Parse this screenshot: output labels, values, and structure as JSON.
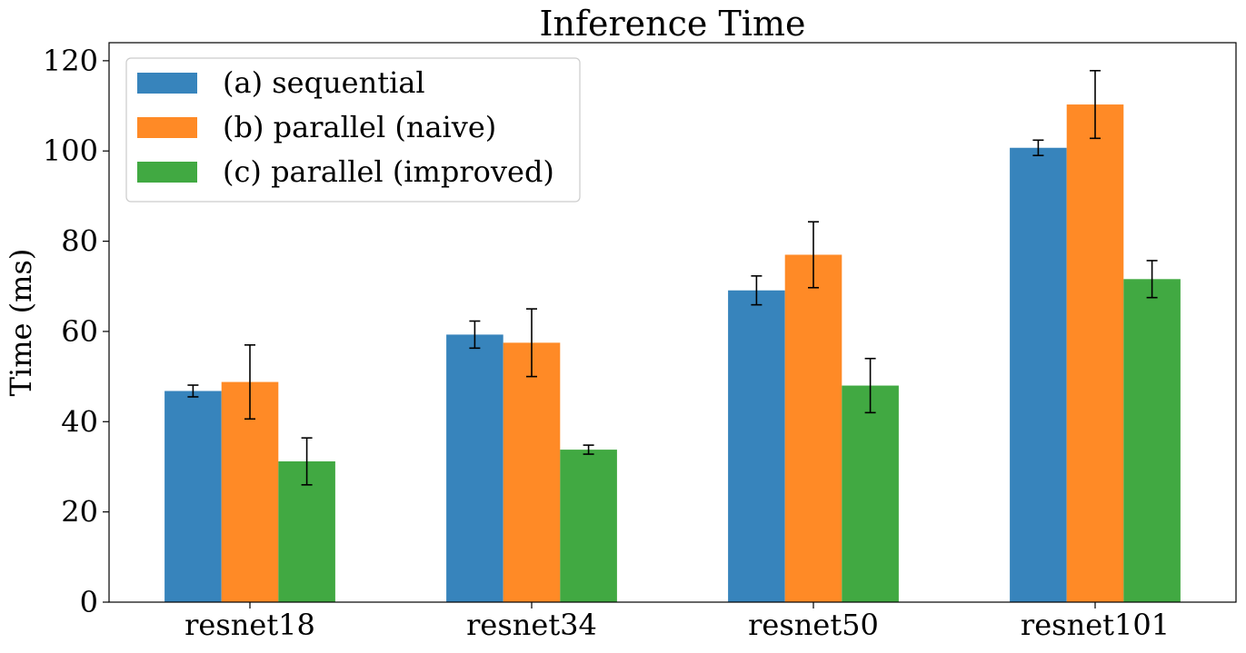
{
  "chart_data": {
    "type": "bar",
    "title": "Inference Time",
    "xlabel": "",
    "ylabel": "Time (ms)",
    "categories": [
      "resnet18",
      "resnet34",
      "resnet50",
      "resnet101"
    ],
    "ylim": [
      0,
      124
    ],
    "yticks": [
      0,
      20,
      40,
      60,
      80,
      100,
      120
    ],
    "legend_position": "top-left",
    "grid": false,
    "series": [
      {
        "name": "(a) sequential",
        "color": "#3784bc",
        "values": [
          46.8,
          59.3,
          69.1,
          100.7
        ],
        "errors": [
          1.3,
          3.0,
          3.2,
          1.7
        ]
      },
      {
        "name": "(b) parallel (naive)",
        "color": "#ff8a26",
        "values": [
          48.8,
          57.5,
          77.0,
          110.3
        ],
        "errors": [
          8.2,
          7.5,
          7.3,
          7.5
        ]
      },
      {
        "name": "(c) parallel (improved)",
        "color": "#41a942",
        "values": [
          31.2,
          33.8,
          48.0,
          71.6
        ],
        "errors": [
          5.2,
          1.0,
          6.0,
          4.1
        ]
      }
    ]
  }
}
